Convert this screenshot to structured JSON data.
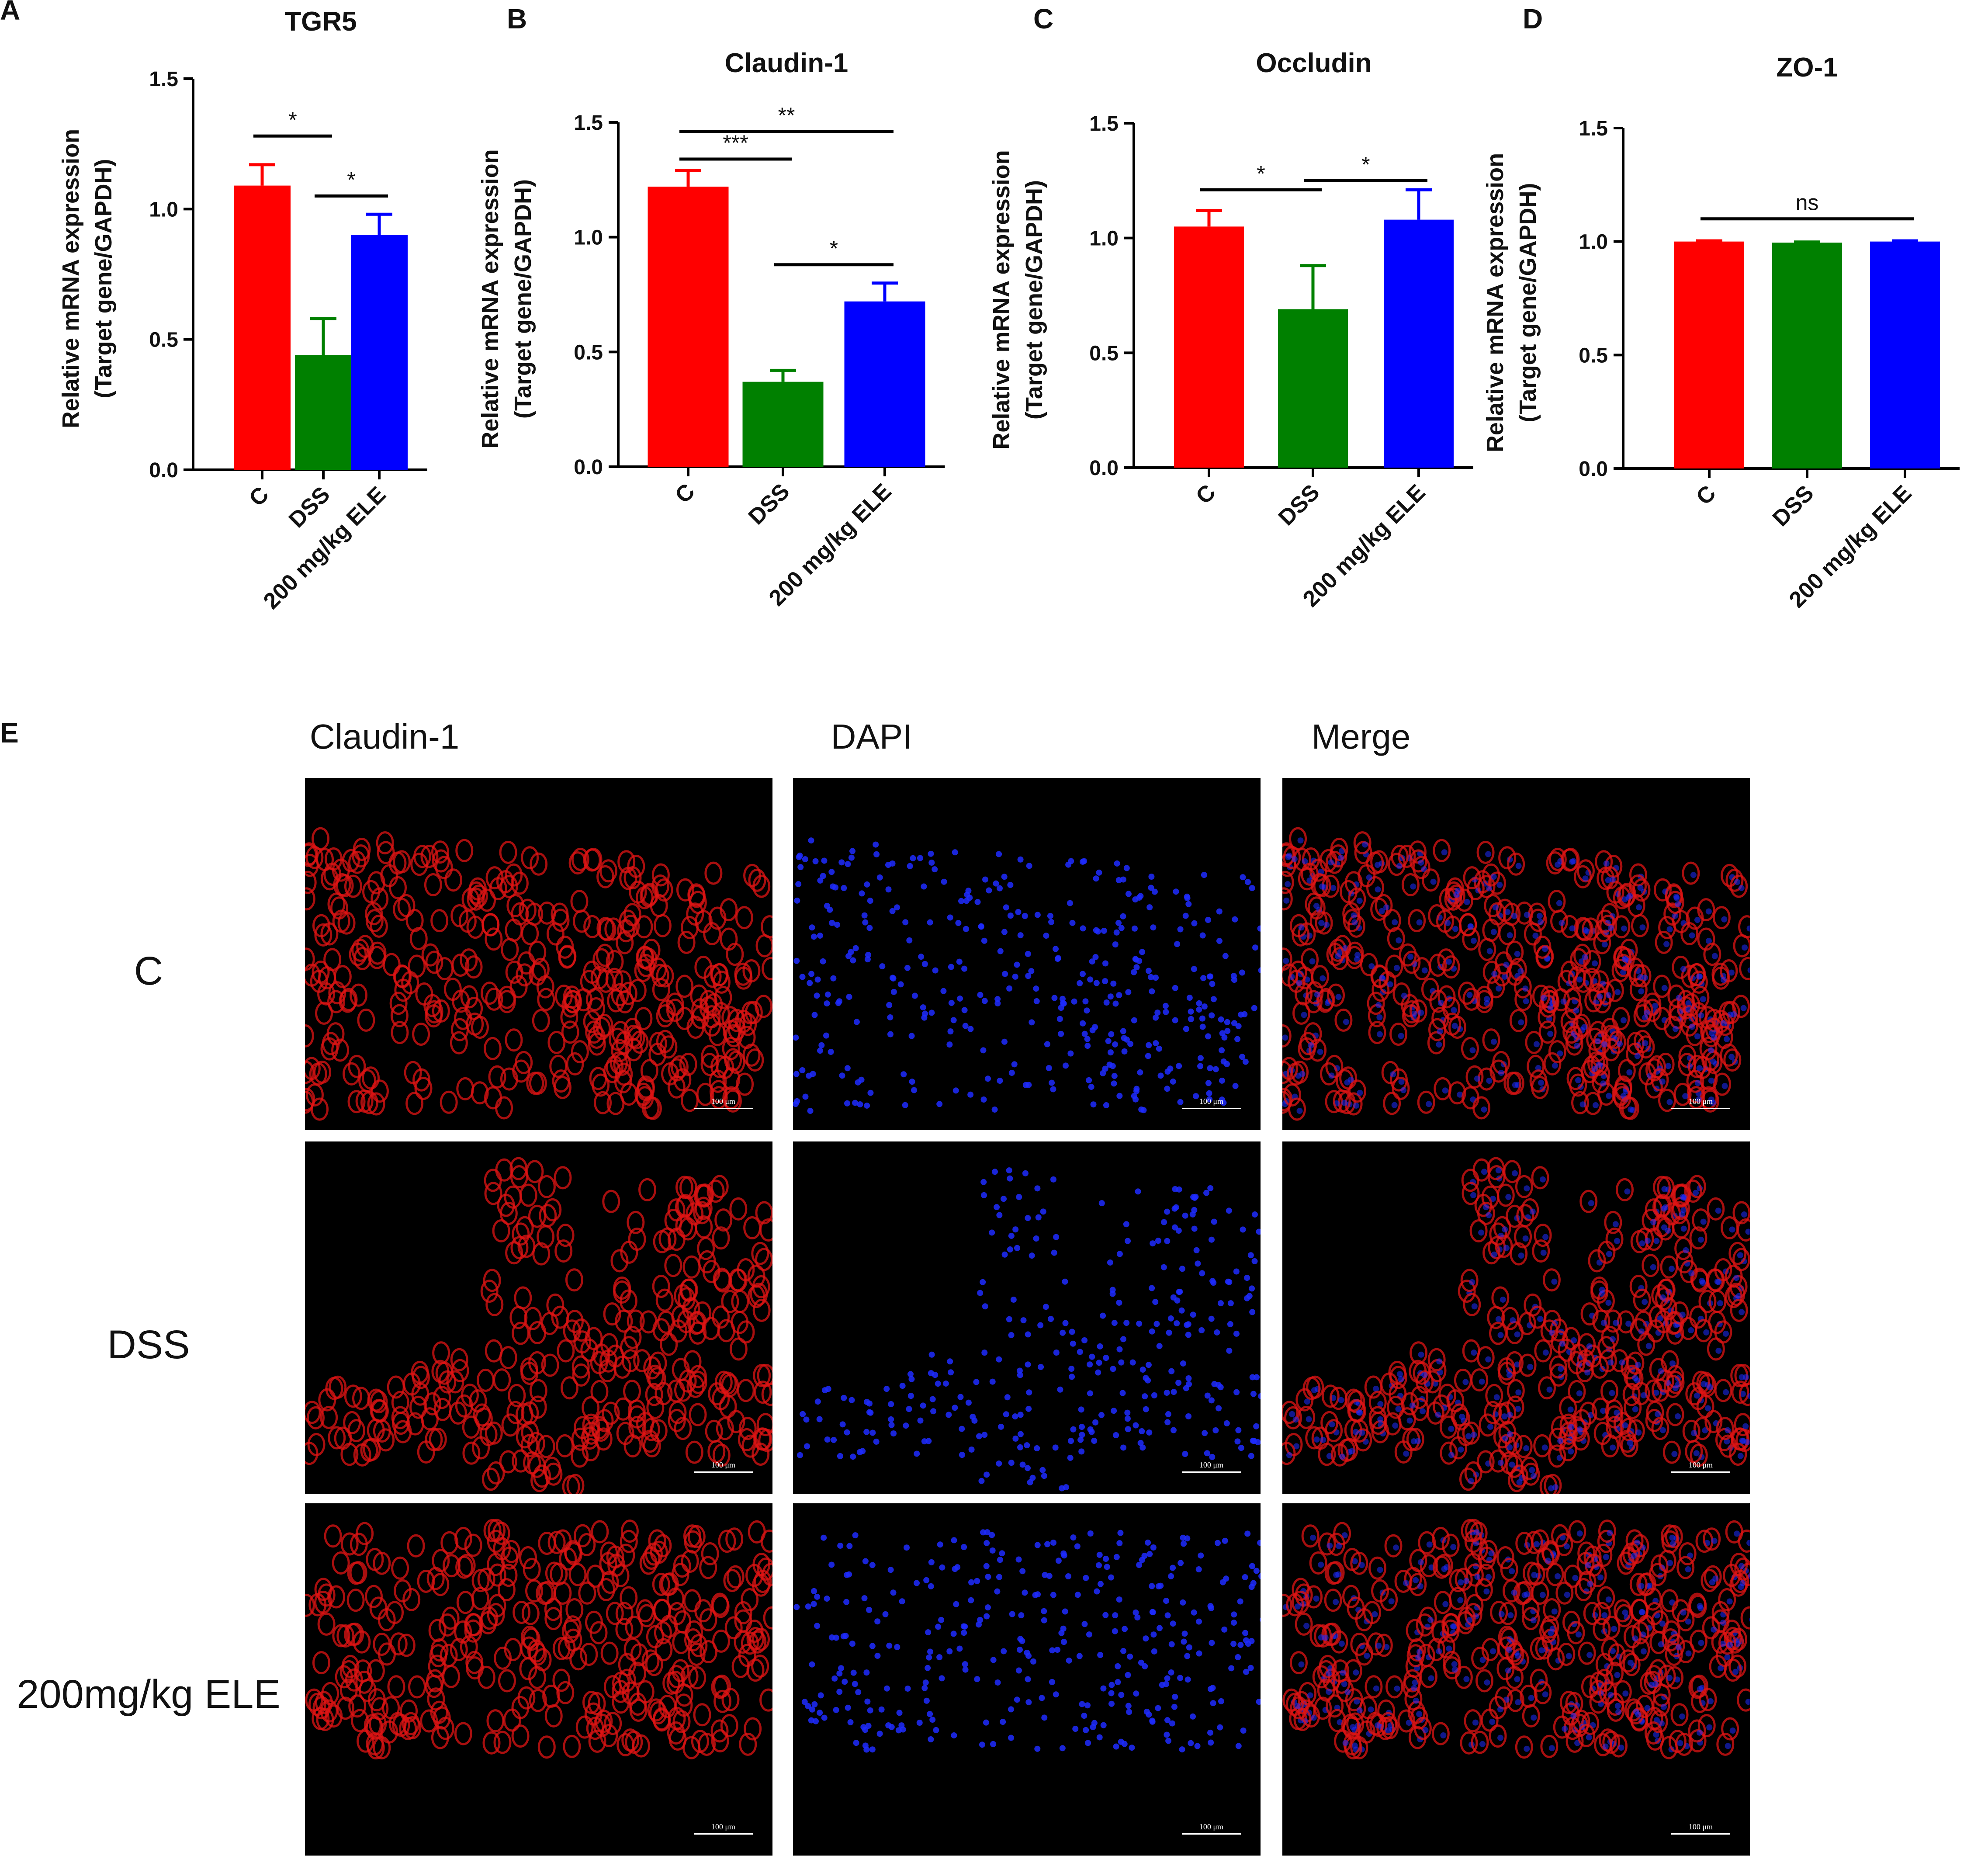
{
  "colors": {
    "C": "#ff0000",
    "DSS": "#008000",
    "ELE": "#0000ff",
    "dapi": "#1e2bff",
    "claudin": "#e01414"
  },
  "chart_data": [
    {
      "panel": "A",
      "type": "bar",
      "title": "TGR5",
      "ylabel": [
        "Relative mRNA expression",
        "(Target gene/GAPDH)"
      ],
      "categories": [
        "C",
        "DSS",
        "200 mg/kg ELE"
      ],
      "values": [
        1.09,
        0.44,
        0.9
      ],
      "errors": [
        0.08,
        0.14,
        0.08
      ],
      "ylim": [
        0,
        1.5
      ],
      "yticks": [
        "0.0",
        "0.5",
        "1.0",
        "1.5"
      ],
      "significance": [
        {
          "from": 0,
          "to": 1,
          "label": "*"
        },
        {
          "from": 1,
          "to": 2,
          "label": "*"
        }
      ]
    },
    {
      "panel": "B",
      "type": "bar",
      "title": "Claudin-1",
      "ylabel": [
        "Relative mRNA expression",
        "(Target gene/GAPDH)"
      ],
      "categories": [
        "C",
        "DSS",
        "200 mg/kg ELE"
      ],
      "values": [
        1.22,
        0.37,
        0.72
      ],
      "errors": [
        0.07,
        0.05,
        0.08
      ],
      "ylim": [
        0,
        1.5
      ],
      "yticks": [
        "0.0",
        "0.5",
        "1.0",
        "1.5"
      ],
      "significance": [
        {
          "from": 0,
          "to": 2,
          "label": "**"
        },
        {
          "from": 0,
          "to": 1,
          "label": "***"
        },
        {
          "from": 1,
          "to": 2,
          "label": "*"
        }
      ]
    },
    {
      "panel": "C",
      "type": "bar",
      "title": "Occludin",
      "ylabel": [
        "Relative mRNA expression",
        "(Target gene/GAPDH)"
      ],
      "categories": [
        "C",
        "DSS",
        "200 mg/kg ELE"
      ],
      "values": [
        1.05,
        0.69,
        1.08
      ],
      "errors": [
        0.07,
        0.19,
        0.13
      ],
      "ylim": [
        0,
        1.5
      ],
      "yticks": [
        "0.0",
        "0.5",
        "1.0",
        "1.5"
      ],
      "significance": [
        {
          "from": 0,
          "to": 1,
          "label": "*"
        },
        {
          "from": 1,
          "to": 2,
          "label": "*"
        }
      ]
    },
    {
      "panel": "D",
      "type": "bar",
      "title": "ZO-1",
      "ylabel": [
        "Relative mRNA expression",
        "(Target gene/GAPDH)"
      ],
      "categories": [
        "C",
        "DSS",
        "200 mg/kg ELE"
      ],
      "values": [
        1.0,
        0.995,
        1.0
      ],
      "errors": [
        0.003,
        0.003,
        0.003
      ],
      "ylim": [
        0,
        1.5
      ],
      "yticks": [
        "0.0",
        "0.5",
        "1.0",
        "1.5"
      ],
      "significance": [
        {
          "from": 0,
          "to": 2,
          "label": "ns"
        }
      ]
    }
  ],
  "panel_e": {
    "letter": "E",
    "column_headers": [
      "Claudin-1",
      "DAPI",
      "Merge"
    ],
    "row_labels": [
      "C",
      "DSS",
      "200mg/kg ELE"
    ],
    "scale_label": "100 μm"
  }
}
